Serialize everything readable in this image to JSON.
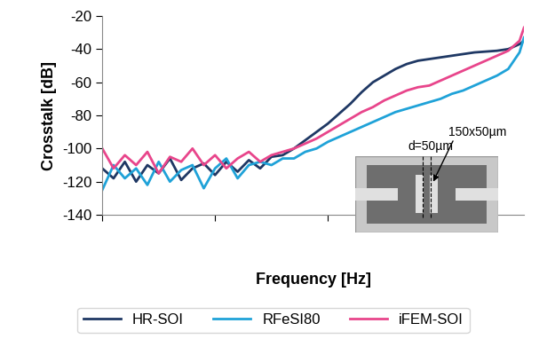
{
  "chart_data": {
    "type": "line",
    "x_label": "Frequency [Hz]",
    "y_label": "Crosstalk [dB]",
    "x": [
      0,
      0.1,
      0.2,
      0.3,
      0.4,
      0.5,
      0.6,
      0.7,
      0.8,
      0.9,
      1.0,
      1.1,
      1.2,
      1.3,
      1.4,
      1.5,
      1.6,
      1.7,
      1.8,
      1.9,
      2.0,
      2.1,
      2.2,
      2.3,
      2.4,
      2.5,
      2.6,
      2.7,
      2.8,
      2.9,
      3.0,
      3.1,
      3.2,
      3.3,
      3.4,
      3.5,
      3.6,
      3.7,
      3.74
    ],
    "series": [
      {
        "name": "HR-SOI",
        "color": "#1f3864",
        "values": [
          -112,
          -118,
          -108,
          -120,
          -110,
          -115,
          -106,
          -119,
          -112,
          -109,
          -116,
          -108,
          -114,
          -107,
          -112,
          -105,
          -104,
          -100,
          -95,
          -90,
          -85,
          -79,
          -73,
          -66,
          -60,
          -56,
          -52,
          -49,
          -47,
          -46,
          -45,
          -44,
          -43,
          -42,
          -41.5,
          -41,
          -40,
          -37,
          -35
        ]
      },
      {
        "name": "RFeSI80",
        "color": "#1fa2d8",
        "values": [
          -125,
          -110,
          -118,
          -112,
          -122,
          -108,
          -120,
          -113,
          -110,
          -124,
          -112,
          -106,
          -118,
          -110,
          -108,
          -110,
          -106,
          -106,
          -102,
          -100,
          -96,
          -93,
          -90,
          -87,
          -84,
          -81,
          -78,
          -76,
          -74,
          -72,
          -70,
          -67,
          -65,
          -62,
          -59,
          -56,
          -52,
          -42,
          -33
        ]
      },
      {
        "name": "iFEM-SOI",
        "color": "#e8458b",
        "values": [
          -100,
          -112,
          -104,
          -110,
          -102,
          -115,
          -105,
          -108,
          -100,
          -110,
          -104,
          -112,
          -106,
          -102,
          -108,
          -104,
          -102,
          -100,
          -97,
          -94,
          -90,
          -86,
          -82,
          -78,
          -75,
          -71,
          -68,
          -65,
          -63,
          -62,
          -59,
          -56,
          -53,
          -50,
          -47,
          -44,
          -41,
          -35,
          -27
        ]
      }
    ],
    "xlim": [
      0,
      3.74
    ],
    "xticks": [
      0,
      1,
      2,
      3
    ],
    "ylim": [
      -140,
      -20
    ],
    "yticks": [
      -140,
      -120,
      -100,
      -80,
      -60,
      -40,
      -20
    ],
    "tick_labels": "y",
    "grid": false,
    "legend": "lower center",
    "annotations": [
      {
        "text": "d=50µm"
      },
      {
        "text": "150x50µm"
      }
    ]
  }
}
